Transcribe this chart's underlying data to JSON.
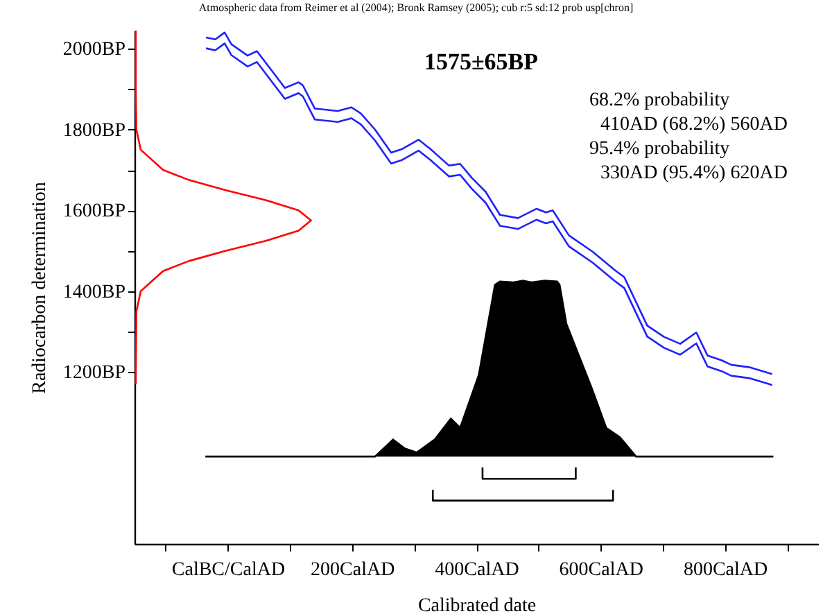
{
  "chart_data": {
    "type": "line",
    "title": "1575±65BP",
    "xlabel": "Calibrated date",
    "ylabel": "Radiocarbon determination",
    "annotations": [
      "Atmospheric data from Reimer et al (2004); Bronk Ramsey (2005); cub r:5 sd:12 prob usp[chron]",
      "68.2% probability",
      "410AD (68.2%) 560AD",
      "95.4% probability",
      "330AD (95.4%) 620AD"
    ],
    "xlim": [
      -150,
      950
    ],
    "ylim": [
      775,
      2045
    ],
    "xticks": [
      {
        "value": -100,
        "label": null
      },
      {
        "value": 0,
        "label": "CalBC/CalAD"
      },
      {
        "value": 100,
        "label": null
      },
      {
        "value": 200,
        "label": "200CalAD"
      },
      {
        "value": 300,
        "label": null
      },
      {
        "value": 400,
        "label": "400CalAD"
      },
      {
        "value": 500,
        "label": null
      },
      {
        "value": 600,
        "label": "600CalAD"
      },
      {
        "value": 700,
        "label": null
      },
      {
        "value": 800,
        "label": "800CalAD"
      },
      {
        "value": 900,
        "label": null
      }
    ],
    "yticks": [
      {
        "value": 1200,
        "label": "1200BP"
      },
      {
        "value": 1300,
        "label": null
      },
      {
        "value": 1400,
        "label": "1400BP"
      },
      {
        "value": 1500,
        "label": null
      },
      {
        "value": 1600,
        "label": "1600BP"
      },
      {
        "value": 1700,
        "label": null
      },
      {
        "value": 1800,
        "label": "1800BP"
      },
      {
        "value": 1900,
        "label": null
      },
      {
        "value": 2000,
        "label": "2000BP"
      }
    ],
    "series": [
      {
        "color": "#2020ff",
        "x": [
          -35,
          -20,
          -5,
          6,
          32,
          47,
          92,
          114,
          121,
          140,
          177,
          199,
          214,
          237,
          263,
          281,
          307,
          326,
          356,
          374,
          393,
          415,
          438,
          467,
          497,
          512,
          523,
          549,
          587,
          623,
          638,
          675,
          702,
          728,
          754,
          772,
          795,
          810,
          839,
          876
        ],
        "values": [
          2028,
          2023,
          2040,
          2011,
          1983,
          1994,
          1903,
          1917,
          1909,
          1852,
          1846,
          1855,
          1840,
          1800,
          1743,
          1752,
          1775,
          1752,
          1711,
          1715,
          1680,
          1646,
          1589,
          1581,
          1604,
          1595,
          1600,
          1538,
          1498,
          1452,
          1435,
          1315,
          1287,
          1270,
          1298,
          1241,
          1229,
          1218,
          1212,
          1195
        ]
      },
      {
        "color": "#2020ff",
        "x": [
          -35,
          -20,
          -5,
          6,
          32,
          47,
          92,
          114,
          121,
          140,
          177,
          199,
          214,
          237,
          263,
          281,
          307,
          326,
          356,
          374,
          393,
          415,
          438,
          467,
          497,
          512,
          523,
          549,
          587,
          623,
          638,
          675,
          702,
          728,
          754,
          772,
          795,
          810,
          839,
          876
        ],
        "values": [
          2001,
          1996,
          2013,
          1984,
          1956,
          1967,
          1876,
          1890,
          1882,
          1825,
          1819,
          1828,
          1813,
          1773,
          1716,
          1725,
          1748,
          1725,
          1684,
          1688,
          1653,
          1619,
          1562,
          1554,
          1577,
          1568,
          1573,
          1511,
          1471,
          1425,
          1408,
          1288,
          1260,
          1243,
          1271,
          1214,
          1202,
          1191,
          1185,
          1168
        ]
      },
      {
        "color": "#ff0000",
        "x": [
          -148,
          -148,
          -147,
          -140,
          -104,
          -62,
          -3,
          62,
          114,
          134,
          114,
          62,
          -3,
          -62,
          -104,
          -140,
          -147,
          -148
        ],
        "values": [
          2045,
          1900,
          1800,
          1750,
          1700,
          1675,
          1650,
          1625,
          1600,
          1575,
          1550,
          1525,
          1500,
          1475,
          1450,
          1400,
          1350,
          1170
        ]
      },
      {
        "type": "area",
        "color": "#000000",
        "x": [
          -36,
          237,
          266,
          285,
          304,
          333,
          359,
          374,
          404,
          430,
          438,
          460,
          475,
          489,
          510,
          530,
          534,
          545,
          586,
          609,
          631,
          657,
          878
        ],
        "values": [
          991,
          991,
          1033,
          1011,
          1001,
          1033,
          1085,
          1062,
          1193,
          1416,
          1424,
          1422,
          1426,
          1422,
          1426,
          1424,
          1416,
          1319,
          1159,
          1062,
          1039,
          991,
          991
        ]
      },
      {
        "color": "#000000",
        "x": [
          410,
          410,
          560,
          560
        ],
        "values": [
          964,
          936,
          936,
          964
        ]
      },
      {
        "color": "#000000",
        "x": [
          330,
          330,
          620,
          620
        ],
        "values": [
          909,
          882,
          882,
          909
        ]
      }
    ]
  }
}
